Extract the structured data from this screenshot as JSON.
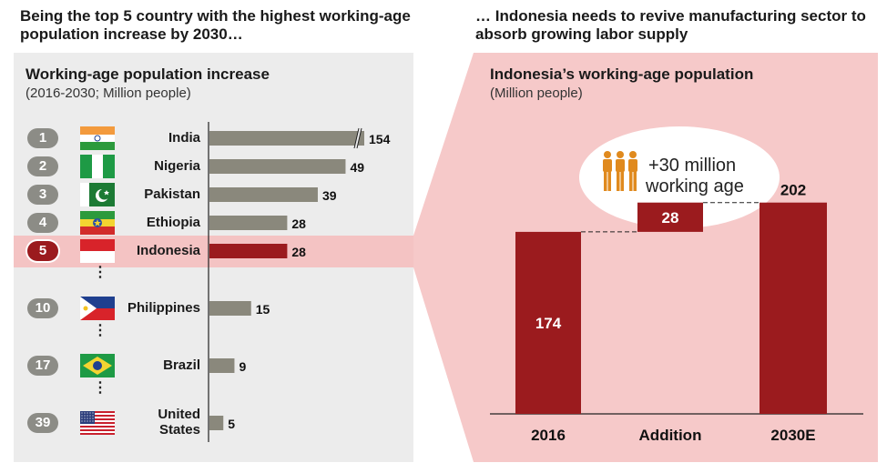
{
  "headlines": {
    "left": "Being the top 5 country with the highest working-age population increase by 2030…",
    "right": "… Indonesia needs to revive manufacturing sector to absorb growing labor supply"
  },
  "left_panel": {
    "title": "Working-age population increase",
    "subtitle": "(2016-2030; Million people)"
  },
  "right_panel": {
    "title": "Indonesia’s working-age population",
    "subtitle": "(Million people)",
    "callout": {
      "line1": "+30 million",
      "line2": "working age",
      "icon": "people-group-icon"
    }
  },
  "ellipsis": "⋮",
  "colors": {
    "grey_bar": "#8a887c",
    "red_bar": "#9b1b1e",
    "rank_grey": "#8c8c86",
    "highlight": "#f4c3c3",
    "panel_pink": "#f6c9c9"
  },
  "chart_data": [
    {
      "type": "bar",
      "orientation": "horizontal",
      "title": "Working-age population increase",
      "subtitle": "(2016-2030; Million people)",
      "axis_break_on": "India",
      "categories": [
        {
          "rank": "1",
          "name": "India",
          "value": 154,
          "flag": "india-flag-icon"
        },
        {
          "rank": "2",
          "name": "Nigeria",
          "value": 49,
          "flag": "nigeria-flag-icon"
        },
        {
          "rank": "3",
          "name": "Pakistan",
          "value": 39,
          "flag": "pakistan-flag-icon"
        },
        {
          "rank": "4",
          "name": "Ethiopia",
          "value": 28,
          "flag": "ethiopia-flag-icon"
        },
        {
          "rank": "5",
          "name": "Indonesia",
          "value": 28,
          "flag": "indonesia-flag-icon",
          "highlight": true
        },
        {
          "rank": "10",
          "name": "Philippines",
          "value": 15,
          "flag": "philippines-flag-icon"
        },
        {
          "rank": "17",
          "name": "Brazil",
          "value": 9,
          "flag": "brazil-flag-icon"
        },
        {
          "rank": "39",
          "name": "United States",
          "value": 5,
          "flag": "usa-flag-icon"
        }
      ]
    },
    {
      "type": "bar",
      "variant": "waterfall",
      "title": "Indonesia’s working-age population",
      "subtitle": "(Million people)",
      "categories": [
        "2016",
        "Addition",
        "2030E"
      ],
      "values": [
        174,
        28,
        202
      ],
      "ylim": [
        0,
        210
      ]
    }
  ]
}
